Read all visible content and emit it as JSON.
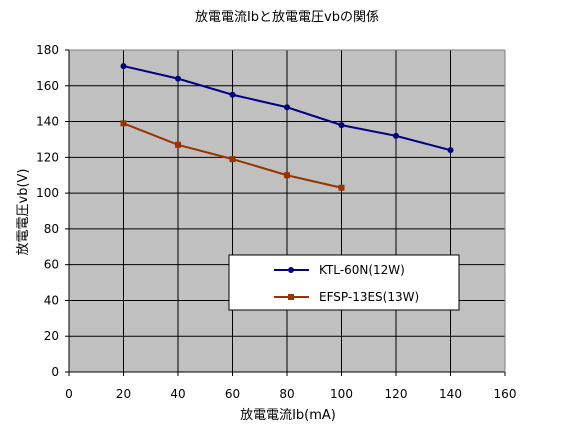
{
  "chart_data": {
    "type": "line",
    "title": "放電電流Ibと放電電圧vbの関係",
    "xlabel": "放電電流Ib(mA)",
    "ylabel": "放電電圧vb(V)",
    "xlim": [
      0,
      160
    ],
    "ylim": [
      0,
      180
    ],
    "xticks": [
      0,
      20,
      40,
      60,
      80,
      100,
      120,
      140,
      160
    ],
    "yticks": [
      0,
      20,
      40,
      60,
      80,
      100,
      120,
      140,
      160,
      180
    ],
    "grid": true,
    "legend_position": "lower-center",
    "plot_background": "#c0c0c0",
    "series": [
      {
        "name": "KTL-60N(12W)",
        "color": "#000080",
        "marker": "circle",
        "x": [
          20,
          40,
          60,
          80,
          100,
          120,
          140
        ],
        "y": [
          171,
          164,
          155,
          148,
          138,
          132,
          124
        ]
      },
      {
        "name": "EFSP-13ES(13W)",
        "color": "#993300",
        "marker": "square",
        "x": [
          20,
          40,
          60,
          80,
          100
        ],
        "y": [
          139,
          127,
          119,
          110,
          103
        ]
      }
    ]
  }
}
